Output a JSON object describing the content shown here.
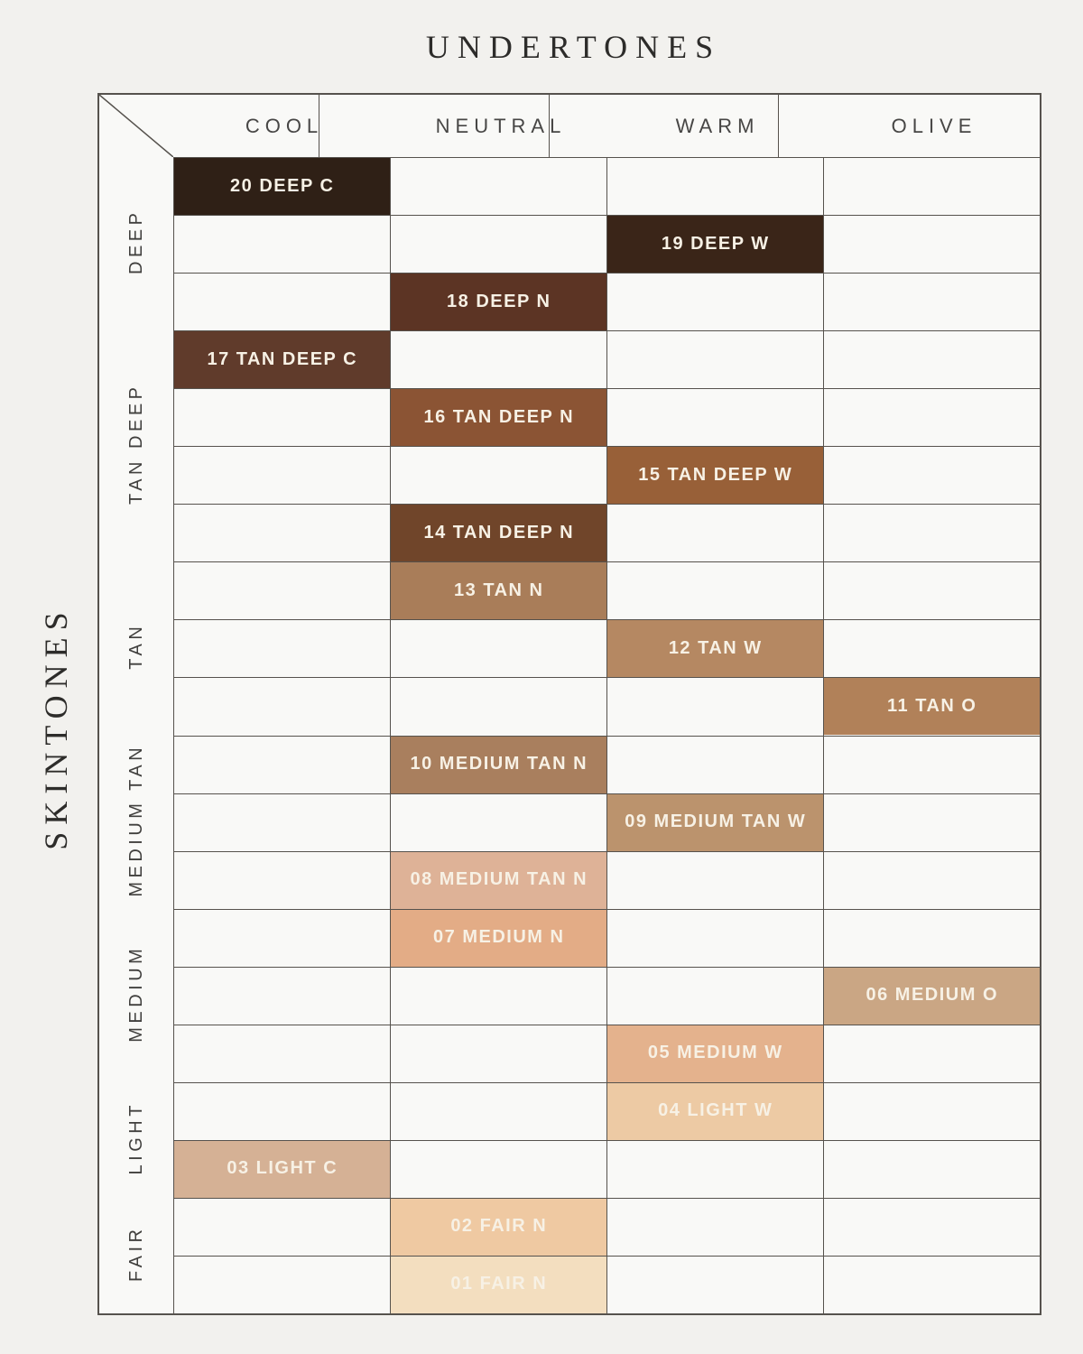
{
  "chart_data": {
    "type": "table",
    "title": "UNDERTONES",
    "row_axis_label": "SKINTONES",
    "columns": [
      "COOL",
      "NEUTRAL",
      "WARM",
      "OLIVE"
    ],
    "row_groups": [
      {
        "label": "DEEP",
        "row_start": 1,
        "row_end": 3
      },
      {
        "label": "TAN DEEP",
        "row_start": 4,
        "row_end": 7
      },
      {
        "label": "TAN",
        "row_start": 8,
        "row_end": 10
      },
      {
        "label": "MEDIUM TAN",
        "row_start": 11,
        "row_end": 13
      },
      {
        "label": "MEDIUM",
        "row_start": 14,
        "row_end": 16
      },
      {
        "label": "LIGHT",
        "row_start": 17,
        "row_end": 18
      },
      {
        "label": "FAIR",
        "row_start": 19,
        "row_end": 20
      }
    ],
    "shades": [
      {
        "row": 1,
        "label": "20 DEEP C",
        "skintone": "DEEP",
        "undertone": "COOL",
        "swatch_color": "#2f2016"
      },
      {
        "row": 2,
        "label": "19 DEEP W",
        "skintone": "DEEP",
        "undertone": "WARM",
        "swatch_color": "#3a2518"
      },
      {
        "row": 3,
        "label": "18 DEEP N",
        "skintone": "DEEP",
        "undertone": "NEUTRAL",
        "swatch_color": "#5c3424"
      },
      {
        "row": 4,
        "label": "17 TAN DEEP C",
        "skintone": "TAN DEEP",
        "undertone": "COOL",
        "swatch_color": "#603b2b"
      },
      {
        "row": 5,
        "label": "16 TAN DEEP N",
        "skintone": "TAN DEEP",
        "undertone": "NEUTRAL",
        "swatch_color": "#8b5434"
      },
      {
        "row": 6,
        "label": "15 TAN DEEP W",
        "skintone": "TAN DEEP",
        "undertone": "WARM",
        "swatch_color": "#986038"
      },
      {
        "row": 7,
        "label": "14 TAN DEEP N",
        "skintone": "TAN DEEP",
        "undertone": "NEUTRAL",
        "swatch_color": "#70452a"
      },
      {
        "row": 8,
        "label": "13 TAN N",
        "skintone": "TAN",
        "undertone": "NEUTRAL",
        "swatch_color": "#a97d59"
      },
      {
        "row": 9,
        "label": "12 TAN W",
        "skintone": "TAN",
        "undertone": "WARM",
        "swatch_color": "#b58862"
      },
      {
        "row": 10,
        "label": "11 TAN O",
        "skintone": "TAN",
        "undertone": "OLIVE",
        "swatch_color": "#b18159"
      },
      {
        "row": 11,
        "label": "10 MEDIUM TAN N",
        "skintone": "MEDIUM TAN",
        "undertone": "NEUTRAL",
        "swatch_color": "#a97f5e"
      },
      {
        "row": 12,
        "label": "09 MEDIUM TAN W",
        "skintone": "MEDIUM TAN",
        "undertone": "WARM",
        "swatch_color": "#bb936d"
      },
      {
        "row": 13,
        "label": "08 MEDIUM TAN N",
        "skintone": "MEDIUM TAN",
        "undertone": "NEUTRAL",
        "swatch_color": "#deb297"
      },
      {
        "row": 14,
        "label": "07 MEDIUM N",
        "skintone": "MEDIUM",
        "undertone": "NEUTRAL",
        "swatch_color": "#e3ac86"
      },
      {
        "row": 15,
        "label": "06 MEDIUM O",
        "skintone": "MEDIUM",
        "undertone": "OLIVE",
        "swatch_color": "#caa684"
      },
      {
        "row": 16,
        "label": "05 MEDIUM W",
        "skintone": "MEDIUM",
        "undertone": "WARM",
        "swatch_color": "#e4b28d"
      },
      {
        "row": 17,
        "label": "04 LIGHT W",
        "skintone": "LIGHT",
        "undertone": "WARM",
        "swatch_color": "#edcaa4"
      },
      {
        "row": 18,
        "label": "03 LIGHT C",
        "skintone": "LIGHT",
        "undertone": "COOL",
        "swatch_color": "#d5b195"
      },
      {
        "row": 19,
        "label": "02 FAIR N",
        "skintone": "FAIR",
        "undertone": "NEUTRAL",
        "swatch_color": "#efc9a2"
      },
      {
        "row": 20,
        "label": "01 FAIR N",
        "skintone": "FAIR",
        "undertone": "NEUTRAL",
        "swatch_color": "#f3debf"
      }
    ]
  },
  "colors": {
    "page_background": "#f2f1ee",
    "cell_background": "#f9f9f7",
    "grid_line": "#56524d",
    "swatch_label_text": "#f7f1e5",
    "heading_text": "#2d2c2a"
  }
}
